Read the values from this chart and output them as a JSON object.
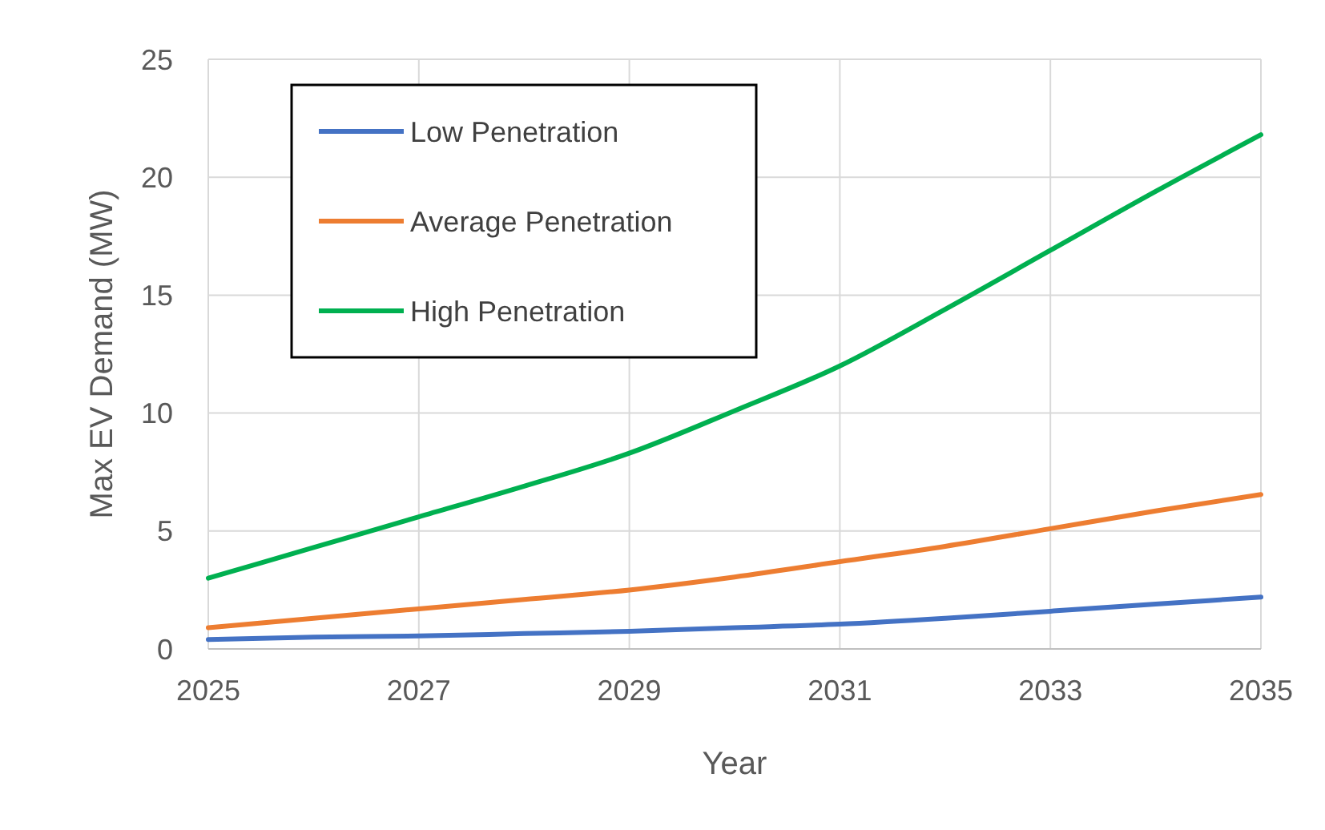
{
  "chart_data": {
    "type": "line",
    "xlabel": "Year",
    "ylabel": "Max EV Demand (MW)",
    "x": [
      2025,
      2026,
      2027,
      2028,
      2029,
      2030,
      2031,
      2032,
      2033,
      2034,
      2035
    ],
    "xlim": [
      2025,
      2035
    ],
    "xticks": [
      2025,
      2027,
      2029,
      2031,
      2033,
      2035
    ],
    "ylim": [
      0,
      25
    ],
    "yticks": [
      0,
      5,
      10,
      15,
      20,
      25
    ],
    "grid": true,
    "legend": "top left",
    "marker": "none",
    "line_style": "solid",
    "series": [
      {
        "name": "Low Penetration",
        "color": "#4472c4",
        "values": [
          0.4,
          0.5,
          0.55,
          0.65,
          0.75,
          0.9,
          1.05,
          1.3,
          1.6,
          1.9,
          2.2
        ]
      },
      {
        "name": "Average Penetration",
        "color": "#ed7d31",
        "values": [
          0.9,
          1.3,
          1.7,
          2.1,
          2.5,
          3.05,
          3.7,
          4.35,
          5.1,
          5.85,
          6.55
        ]
      },
      {
        "name": "High Penetration",
        "color": "#00b050",
        "values": [
          3.0,
          4.3,
          5.6,
          6.9,
          8.3,
          10.1,
          12.0,
          14.4,
          16.9,
          19.4,
          21.8
        ]
      }
    ]
  }
}
